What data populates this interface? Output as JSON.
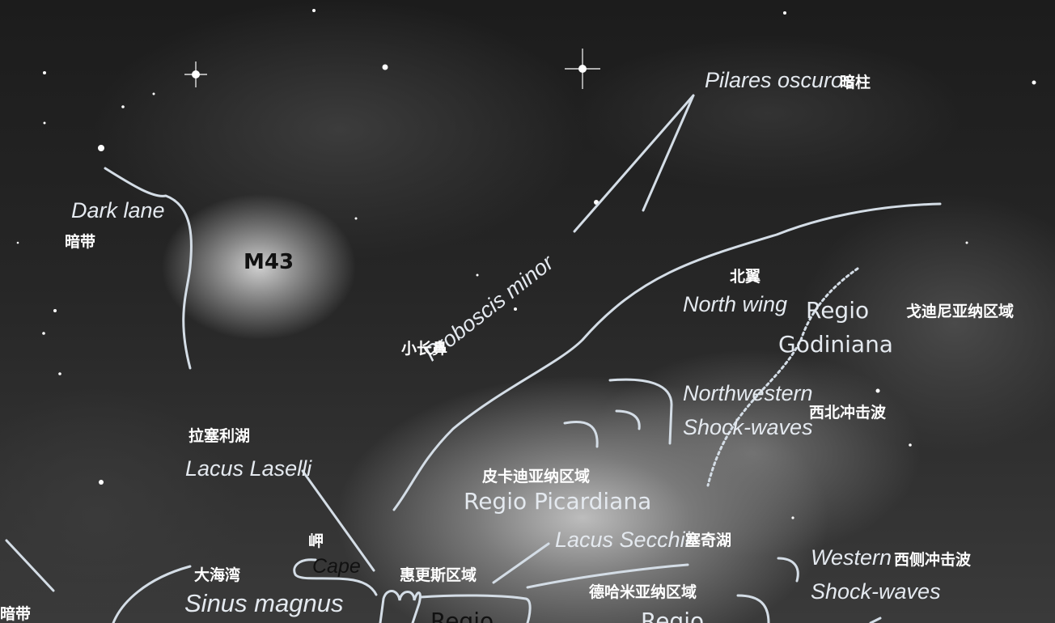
{
  "image": {
    "subject": "M43",
    "labels": {
      "m43": "M43",
      "dark_lane_en": "Dark lane",
      "dark_lane_zh": "暗带",
      "dark_lane_zh_bottom": "暗带",
      "pilares_en": "Pilares oscuros",
      "pilares_zh": "暗柱",
      "north_wing_zh": "北翼",
      "north_wing_en": "North wing",
      "regio_godiniana_line1": "Regio",
      "regio_godiniana_line2": "Godiniana",
      "regio_godiniana_zh": "戈迪尼亚纳区域",
      "proboscis_minor_en": "Proboscis minor",
      "proboscis_minor_zh": "小长鼻",
      "nw_shock_line1": "Northwestern",
      "nw_shock_line2": "Shock-waves",
      "nw_shock_zh": "西北冲击波",
      "lacus_laselli_zh": "拉塞利湖",
      "lacus_laselli_en": "Lacus Laselli",
      "regio_picardiana_zh": "皮卡迪亚纳区域",
      "regio_picardiana_en": "Regio Picardiana",
      "lacus_secchii_en": "Lacus Secchii",
      "lacus_secchii_zh": "塞奇湖",
      "cape_zh": "岬",
      "cape_en": "Cape",
      "sinus_magnus_zh": "大海湾",
      "sinus_magnus_en": "Sinus magnus",
      "huygens_zh": "惠更斯区域",
      "dehamiana_zh": "德哈米亚纳区域",
      "regio_bottom_1": "Regio",
      "regio_bottom_2": "Regio",
      "western_line1": "Western",
      "western_line2": "Shock-waves",
      "western_zh": "西侧冲击波"
    },
    "colors": {
      "annotation_line": "#d4dde6",
      "text_en": "#e4e9ef",
      "text_zh": "#ffffff"
    }
  }
}
